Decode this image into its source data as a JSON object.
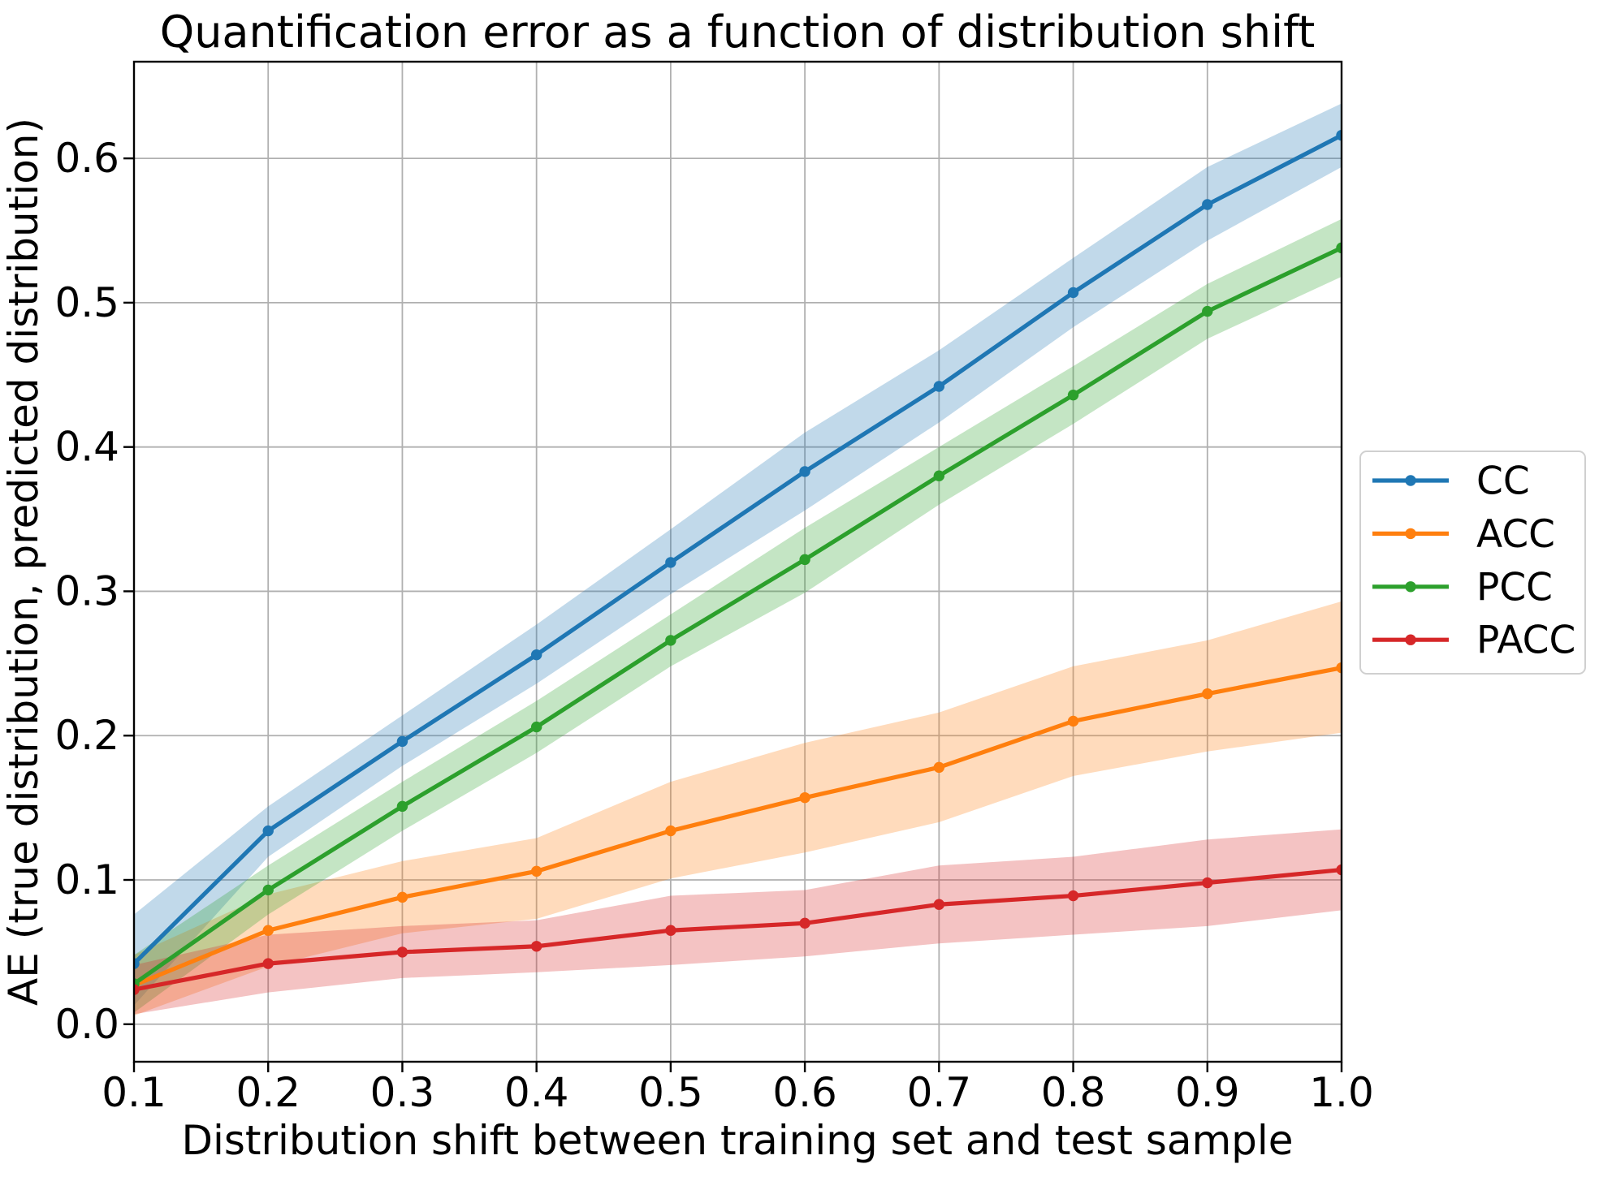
{
  "chart_data": {
    "type": "line",
    "title": "Quantification error as a function of distribution shift",
    "xlabel": "Distribution shift between training set and test sample",
    "ylabel": "AE (true distribution, predicted distribution)",
    "x": [
      0.1,
      0.2,
      0.3,
      0.4,
      0.5,
      0.6,
      0.7,
      0.8,
      0.9,
      1.0
    ],
    "xlim": [
      0.1,
      1.0
    ],
    "ylim": [
      -0.026,
      0.667
    ],
    "xticks": [
      0.1,
      0.2,
      0.3,
      0.4,
      0.5,
      0.6,
      0.7,
      0.8,
      0.9,
      1.0
    ],
    "xtick_labels": [
      "0.1",
      "0.2",
      "0.3",
      "0.4",
      "0.5",
      "0.6",
      "0.7",
      "0.8",
      "0.9",
      "1.0"
    ],
    "yticks": [
      0.0,
      0.1,
      0.2,
      0.3,
      0.4,
      0.5,
      0.6
    ],
    "ytick_labels": [
      "0.0",
      "0.1",
      "0.2",
      "0.3",
      "0.4",
      "0.5",
      "0.6"
    ],
    "grid": true,
    "legend_position": "right-outside",
    "band_alpha": 0.28,
    "colors": {
      "background": "#ffffff",
      "grid": "#b0b0b0",
      "axis": "#000000",
      "legend_border": "#d0d0d0"
    },
    "series": [
      {
        "name": "CC",
        "color": "#1f77b4",
        "values": [
          0.042,
          0.134,
          0.196,
          0.256,
          0.32,
          0.383,
          0.442,
          0.507,
          0.568,
          0.616
        ],
        "band_lower": [
          0.013,
          0.116,
          0.179,
          0.236,
          0.298,
          0.356,
          0.417,
          0.483,
          0.543,
          0.594
        ],
        "band_upper": [
          0.076,
          0.151,
          0.214,
          0.277,
          0.343,
          0.41,
          0.467,
          0.531,
          0.594,
          0.638
        ]
      },
      {
        "name": "ACC",
        "color": "#ff7f0e",
        "values": [
          0.027,
          0.065,
          0.088,
          0.106,
          0.134,
          0.157,
          0.178,
          0.21,
          0.229,
          0.247
        ],
        "band_lower": [
          0.006,
          0.04,
          0.063,
          0.073,
          0.101,
          0.119,
          0.14,
          0.172,
          0.189,
          0.202
        ],
        "band_upper": [
          0.048,
          0.09,
          0.113,
          0.129,
          0.168,
          0.195,
          0.216,
          0.248,
          0.266,
          0.293
        ]
      },
      {
        "name": "PCC",
        "color": "#2ca02c",
        "values": [
          0.028,
          0.093,
          0.151,
          0.206,
          0.266,
          0.322,
          0.38,
          0.436,
          0.494,
          0.538
        ],
        "band_lower": [
          0.008,
          0.076,
          0.134,
          0.188,
          0.248,
          0.299,
          0.36,
          0.416,
          0.475,
          0.518
        ],
        "band_upper": [
          0.048,
          0.11,
          0.168,
          0.224,
          0.284,
          0.344,
          0.4,
          0.456,
          0.513,
          0.558
        ]
      },
      {
        "name": "PACC",
        "color": "#d62728",
        "values": [
          0.024,
          0.042,
          0.05,
          0.054,
          0.065,
          0.07,
          0.083,
          0.089,
          0.098,
          0.107
        ],
        "band_lower": [
          0.007,
          0.022,
          0.032,
          0.036,
          0.041,
          0.047,
          0.056,
          0.062,
          0.068,
          0.079
        ],
        "band_upper": [
          0.041,
          0.062,
          0.068,
          0.072,
          0.089,
          0.093,
          0.11,
          0.116,
          0.128,
          0.135
        ]
      }
    ]
  }
}
